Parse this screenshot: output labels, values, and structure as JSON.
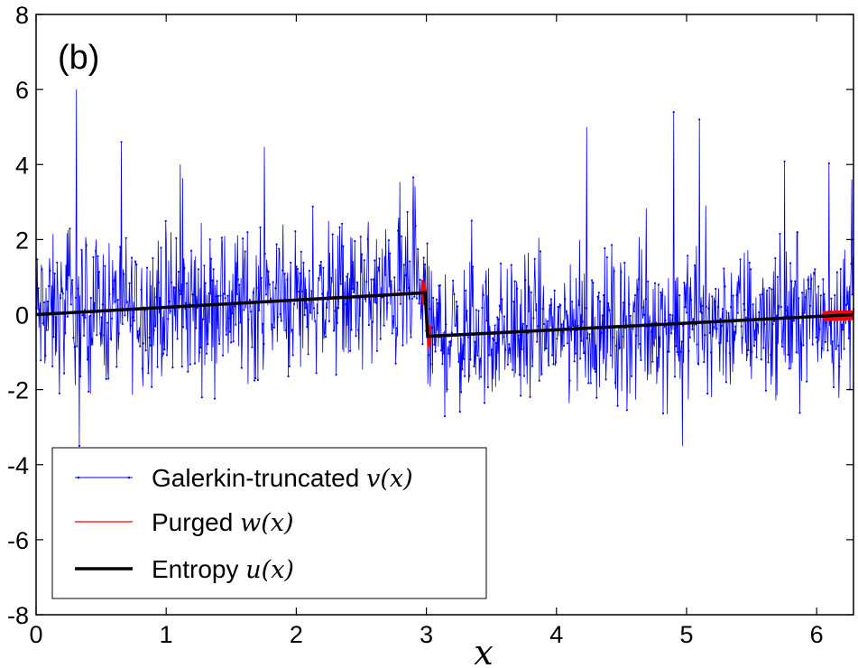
{
  "chart_data": {
    "type": "line",
    "panel_label": "(b)",
    "xlabel": "x",
    "ylabel": "",
    "xlim": [
      0,
      6.283
    ],
    "ylim": [
      -8,
      8
    ],
    "xticks": [
      0,
      1,
      2,
      3,
      4,
      5,
      6
    ],
    "xtick_labels": [
      "0",
      "1",
      "2",
      "3",
      "4",
      "5",
      "6"
    ],
    "yticks": [
      -8,
      -6,
      -4,
      -2,
      0,
      2,
      4,
      6,
      8
    ],
    "ytick_labels": [
      "-8",
      "-6",
      "-4",
      "-2",
      "0",
      "2",
      "4",
      "6",
      "8"
    ],
    "grid": false,
    "legend_position": "lower-left",
    "legend": [
      {
        "text": "Galerkin-truncated ",
        "math": "v(x)",
        "color": "#0000ff",
        "style": "thin-dotted"
      },
      {
        "text": "Purged ",
        "math": "w(x)",
        "color": "#ff0000",
        "style": "thin"
      },
      {
        "text": "Entropy ",
        "math": "u(x)",
        "color": "#000000",
        "style": "thick"
      }
    ],
    "series": [
      {
        "name": "Galerkin-truncated v(x)",
        "color": "#0000ff",
        "description": "noisy thermalized signal fluctuating roughly between -3.5 and 6 around the entropy solution",
        "peaks": [
          [
            0.31,
            6.0
          ],
          [
            1.11,
            4.0
          ],
          [
            4.9,
            5.4
          ],
          [
            4.23,
            5.0
          ],
          [
            5.1,
            5.2
          ],
          [
            6.27,
            3.6
          ],
          [
            0.33,
            -3.5
          ],
          [
            4.97,
            -3.5
          ]
        ]
      },
      {
        "name": "Purged w(x)",
        "color": "#ff0000",
        "x": [
          0,
          2.98,
          3.0,
          3.02,
          6.283
        ],
        "y": [
          0,
          0.6,
          0.0,
          -0.6,
          0.0
        ]
      },
      {
        "name": "Entropy u(x)",
        "color": "#000000",
        "x": [
          0,
          2.99,
          2.99,
          3.01,
          6.283
        ],
        "y": [
          0,
          0.58,
          0.58,
          -0.58,
          0.0
        ]
      }
    ]
  }
}
